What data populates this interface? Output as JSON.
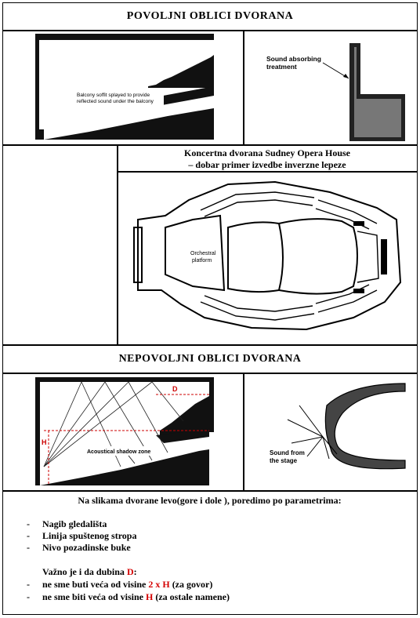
{
  "section1": {
    "title": "POVOLJNI OBLICI DVORANA"
  },
  "fig1": {
    "annotation": "Balcony soffit splayed to provide reflected sound under the balcony"
  },
  "fig2": {
    "annotation_line1": "Sound absorbing",
    "annotation_line2": "treatment"
  },
  "fig3": {
    "caption_line1": "Koncertna dvorana Sudney Opera House",
    "caption_line2": "– dobar primer izvedbe inverzne lepeze",
    "label_line1": "Orchestral",
    "label_line2": "platform"
  },
  "section2": {
    "title": "NEPOVOLJNI OBLICI DVORANA"
  },
  "fig4": {
    "label_d": "D",
    "label_h": "H",
    "annotation": "Acoustical shadow zone"
  },
  "fig5": {
    "annotation_line1": "Sound from",
    "annotation_line2": "the stage"
  },
  "text": {
    "intro": "Na slikama dvorane levo(gore i dole ), poredimo po parametrima:",
    "items": [
      "Nagib gledališta",
      "Linija spuštenog stropa",
      "Nivo pozadinske buke"
    ],
    "note_pre": "Važno je i da dubina ",
    "note_d": "D",
    "note_post": ":",
    "rule1_pre": "ne sme buti veća od  visine ",
    "rule1_red": "2 x H",
    "rule1_post": " (za govor)",
    "rule2_pre": "ne sme biti veća od visine ",
    "rule2_red": "H",
    "rule2_post": " (za ostale namene)",
    "dash": "-",
    "red_color": "#d40000"
  }
}
